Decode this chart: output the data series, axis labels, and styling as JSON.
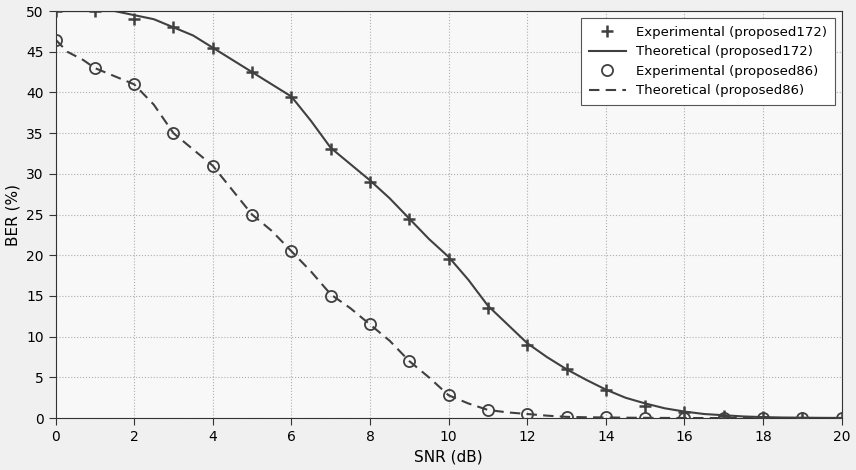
{
  "title": "",
  "xlabel": "SNR (dB)",
  "ylabel": "BER (%)",
  "xlim": [
    0,
    20
  ],
  "ylim": [
    0,
    50
  ],
  "xticks": [
    0,
    2,
    4,
    6,
    8,
    10,
    12,
    14,
    16,
    18,
    20
  ],
  "yticks": [
    0,
    5,
    10,
    15,
    20,
    25,
    30,
    35,
    40,
    45,
    50
  ],
  "exp172_x": [
    0,
    1,
    2,
    3,
    4,
    5,
    6,
    7,
    8,
    9,
    10,
    11,
    12,
    13,
    14,
    15,
    16,
    17,
    18,
    19,
    20
  ],
  "exp172_y": [
    50.0,
    50.0,
    49.0,
    48.0,
    45.5,
    42.5,
    39.5,
    33.0,
    29.0,
    24.5,
    19.5,
    13.5,
    9.0,
    6.0,
    3.5,
    1.5,
    0.8,
    0.3,
    0.1,
    0.05,
    0.02
  ],
  "theo172_x": [
    0,
    0.1,
    0.2,
    0.3,
    0.5,
    0.7,
    1,
    1.5,
    2,
    2.5,
    3,
    3.5,
    4,
    4.5,
    5,
    5.5,
    6,
    6.5,
    7,
    7.5,
    8,
    8.5,
    9,
    9.5,
    10,
    10.5,
    11,
    11.5,
    12,
    12.5,
    13,
    13.5,
    14,
    14.5,
    15,
    15.5,
    16,
    16.5,
    17,
    17.5,
    18,
    18.5,
    19,
    19.5,
    20
  ],
  "theo172_y": [
    50.0,
    50.0,
    50.0,
    50.0,
    50.0,
    50.0,
    50.0,
    50.0,
    49.5,
    49.0,
    48.0,
    47.0,
    45.5,
    44.0,
    42.5,
    41.0,
    39.5,
    36.5,
    33.2,
    31.2,
    29.2,
    27.0,
    24.5,
    22.0,
    19.8,
    17.0,
    13.8,
    11.5,
    9.2,
    7.5,
    6.0,
    4.7,
    3.5,
    2.5,
    1.8,
    1.2,
    0.8,
    0.5,
    0.35,
    0.2,
    0.12,
    0.07,
    0.05,
    0.03,
    0.02
  ],
  "exp86_x": [
    0,
    1,
    2,
    3,
    4,
    5,
    6,
    7,
    8,
    9,
    10,
    11,
    12,
    13,
    14,
    15,
    16,
    17,
    18,
    19,
    20
  ],
  "exp86_y": [
    46.5,
    43.0,
    41.0,
    35.0,
    31.0,
    25.0,
    20.5,
    15.0,
    11.5,
    7.0,
    2.8,
    1.0,
    0.5,
    0.15,
    0.08,
    0.03,
    0.01,
    0.005,
    0.002,
    0.001,
    0.0
  ],
  "theo86_x": [
    0,
    0.1,
    0.2,
    0.3,
    0.5,
    0.7,
    1,
    1.5,
    2,
    2.5,
    3,
    3.5,
    4,
    4.5,
    5,
    5.5,
    6,
    6.5,
    7,
    7.5,
    8,
    8.5,
    9,
    9.5,
    10,
    10.5,
    11,
    11.5,
    12,
    12.5,
    13,
    13.5,
    14,
    14.5,
    15,
    15.5,
    16,
    16.5,
    17,
    17.5,
    18,
    18.5,
    19,
    19.5,
    20
  ],
  "theo86_y": [
    46.5,
    46.0,
    45.5,
    45.0,
    44.5,
    44.0,
    43.0,
    42.0,
    41.0,
    38.5,
    35.0,
    33.0,
    31.0,
    28.0,
    25.0,
    23.0,
    20.5,
    18.0,
    15.2,
    13.5,
    11.5,
    9.5,
    7.0,
    5.0,
    2.8,
    1.8,
    1.0,
    0.7,
    0.5,
    0.3,
    0.15,
    0.1,
    0.08,
    0.05,
    0.03,
    0.02,
    0.01,
    0.008,
    0.005,
    0.003,
    0.002,
    0.001,
    0.001,
    0.0,
    0.0
  ],
  "line_color": "#404040",
  "bg_color": "#f0f0f0",
  "plot_bg_color": "#f8f8f8",
  "grid_color": "#b0b0b0",
  "legend_labels": [
    "Experimental (proposed172)",
    "Theoretical (proposed172)",
    "Experimental (proposed86)",
    "Theoretical (proposed86)"
  ]
}
